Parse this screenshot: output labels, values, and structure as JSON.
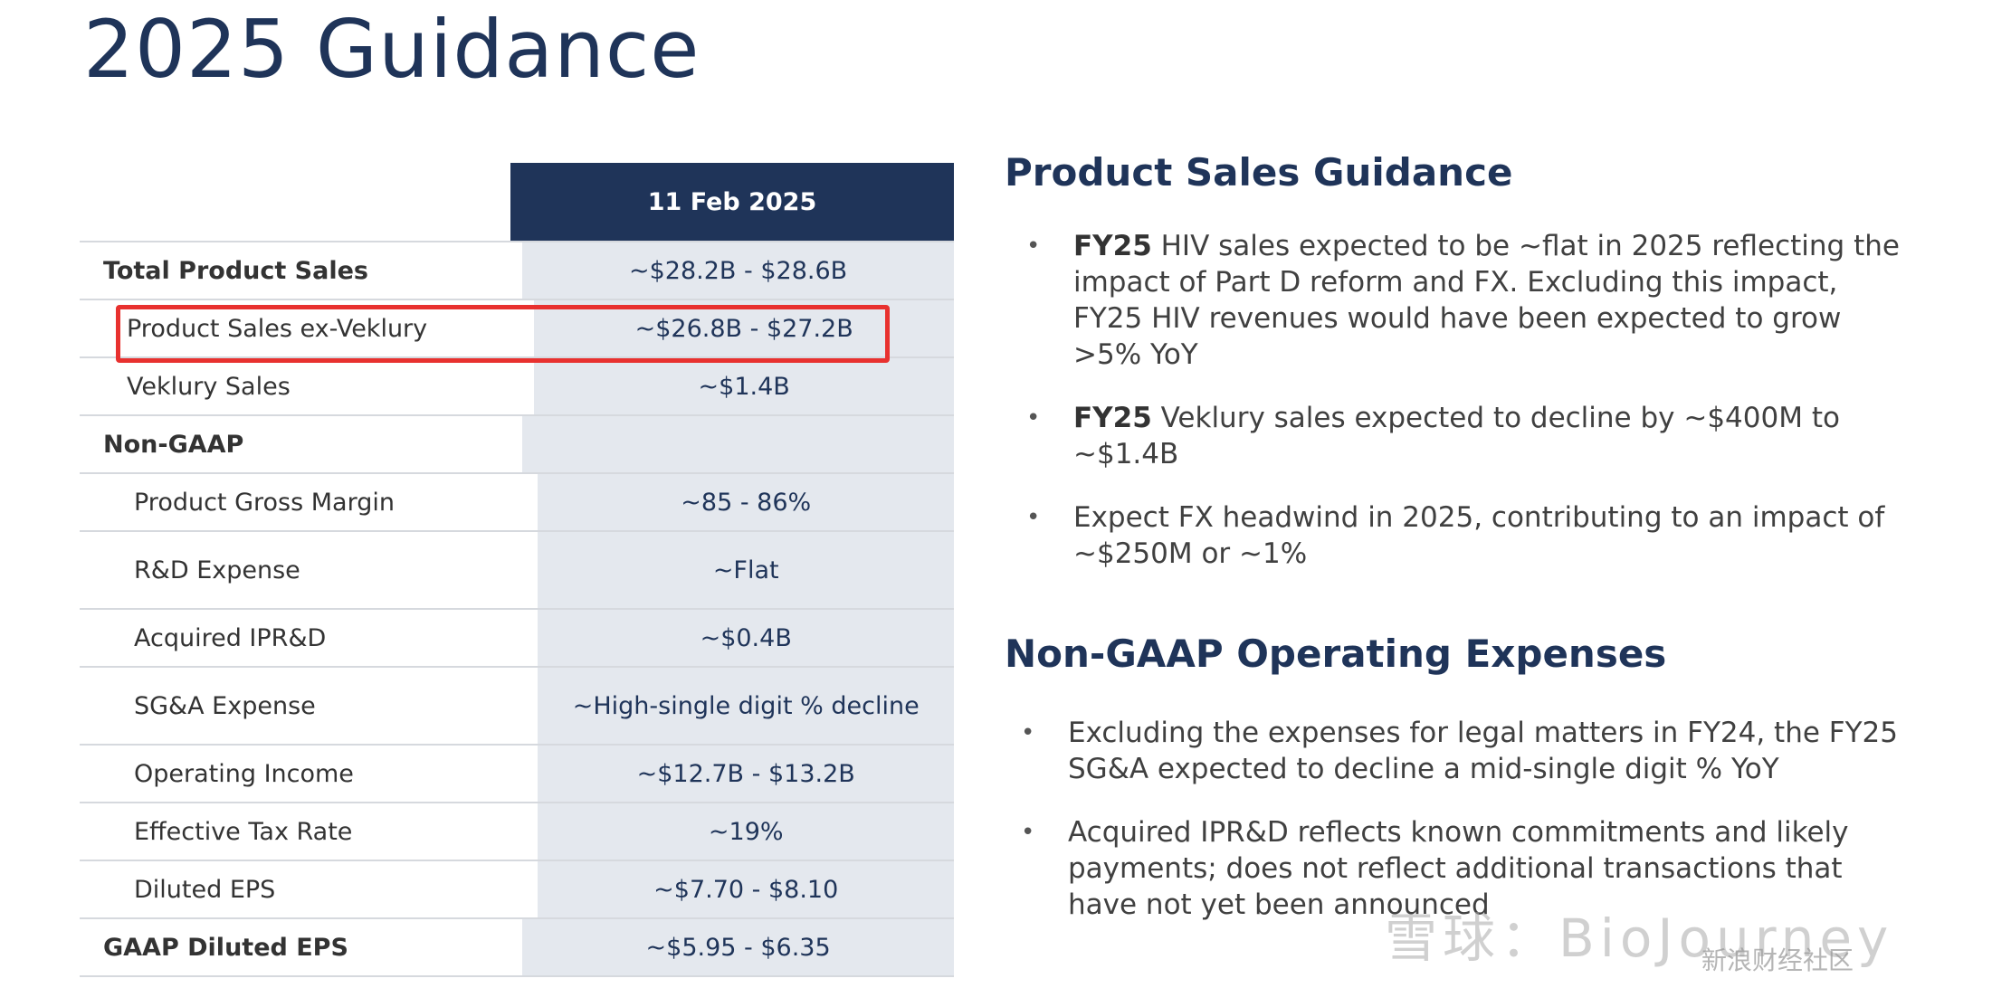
{
  "title": "2025 Guidance",
  "table": {
    "column_header": "11 Feb 2025",
    "rows": [
      {
        "label": "Total Product Sales",
        "value": "~$28.2B - $28.6B"
      },
      {
        "label": "Product Sales ex-Veklury",
        "value": "~$26.8B - $27.2B"
      },
      {
        "label": "Veklury Sales",
        "value": "~$1.4B"
      },
      {
        "label": "Non-GAAP",
        "value": ""
      },
      {
        "label": "Product Gross Margin",
        "value": "~85 - 86%"
      },
      {
        "label": "R&D Expense",
        "value": "~Flat"
      },
      {
        "label": "Acquired IPR&D",
        "value": "~$0.4B"
      },
      {
        "label": "SG&A Expense",
        "value": "~High-single digit % decline"
      },
      {
        "label": "Operating Income",
        "value": "~$12.7B - $13.2B"
      },
      {
        "label": "Effective Tax Rate",
        "value": "~19%"
      },
      {
        "label": "Diluted EPS",
        "value": "~$7.70 - $8.10"
      },
      {
        "label": "GAAP Diluted EPS",
        "value": "~$5.95 - $6.35"
      }
    ]
  },
  "product_sales": {
    "heading": "Product Sales Guidance",
    "bullet1_bold": "FY25",
    "bullet1_text": " HIV sales expected to be ~flat in 2025 reflecting the impact of Part D reform and FX. Excluding this impact, FY25 HIV revenues would have been expected to grow >5% YoY",
    "bullet2_bold": "FY25",
    "bullet2_text": " Veklury sales expected to decline by ~$400M to ~$1.4B",
    "bullet3_text": "Expect FX headwind in 2025, contributing to an impact of ~$250M or ~1%"
  },
  "opex": {
    "heading": "Non-GAAP Operating Expenses",
    "bullet1_text": "Excluding the expenses for legal matters in FY24, the FY25 SG&A expected to decline a mid-single digit % YoY",
    "bullet2_text": "Acquired IPR&D reflects known commitments and likely payments; does not reflect additional transactions that have not yet been announced"
  },
  "watermark": {
    "main": "雪球：BioJourney",
    "sub": "新浪财经社区"
  },
  "colors": {
    "navy": "#1f3459",
    "value_bg": "#e4e8ee",
    "highlight": "#e8312f"
  }
}
